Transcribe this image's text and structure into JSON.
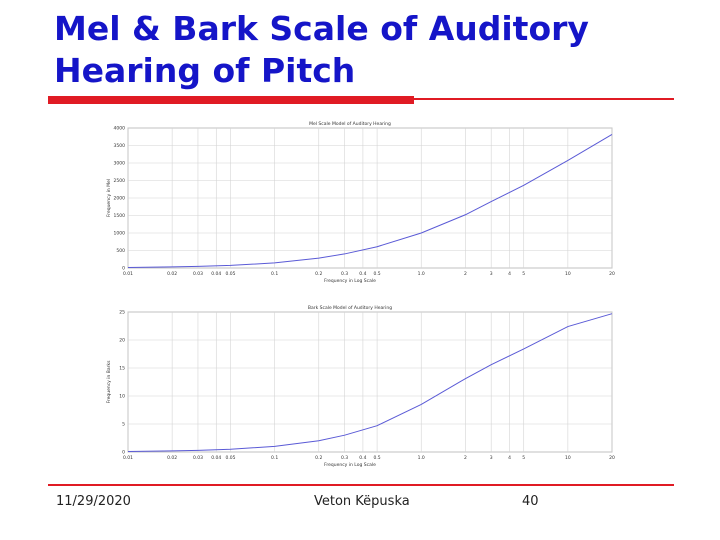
{
  "slide": {
    "title_lines": [
      "Mel & Bark Scale of Auditory",
      "Hearing of Pitch"
    ],
    "accent_color": "#1515c8",
    "rule_color": "#e01b24"
  },
  "footer": {
    "date": "11/29/2020",
    "author": "Veton Këpuska",
    "page": "40"
  },
  "chart_data": [
    {
      "type": "line",
      "title": "Mel Scale Model of Auditory Hearing",
      "xlabel": "Frequency in Log Scale",
      "ylabel": "Frequency in Mel",
      "x_scale": "log",
      "xlim": [
        0.01,
        20
      ],
      "ylim": [
        0,
        4000
      ],
      "x_ticks": [
        0.01,
        0.02,
        0.03,
        0.04,
        0.05,
        0.1,
        0.2,
        0.3,
        0.4,
        0.5,
        1,
        2,
        3,
        4,
        5,
        10,
        20
      ],
      "x_tick_labels": [
        "0.01",
        "0.02",
        "0.03",
        "0.04",
        "0.05",
        "0.1",
        "0.2",
        "0.3",
        "0.4",
        "0.5",
        "1.0",
        "2",
        "3",
        "4",
        "5",
        "10",
        "20"
      ],
      "y_ticks": [
        0,
        500,
        1000,
        1500,
        2000,
        2500,
        3000,
        3500,
        4000
      ],
      "y_tick_labels": [
        "0",
        "500",
        "1000",
        "1500",
        "2000",
        "2500",
        "3000",
        "3500",
        "4000"
      ],
      "grid": true,
      "series": [
        {
          "color": "#5a5ad6",
          "x": [
            0.01,
            0.02,
            0.03,
            0.05,
            0.1,
            0.2,
            0.3,
            0.5,
            1,
            2,
            3,
            5,
            10,
            20
          ],
          "y": [
            15,
            31,
            46,
            75,
            145,
            283,
            402,
            608,
            1000,
            1521,
            1899,
            2363,
            3073,
            3817
          ]
        }
      ]
    },
    {
      "type": "line",
      "title": "Bark Scale Model of Auditory Hearing",
      "xlabel": "Frequency in Log Scale",
      "ylabel": "Frequency in Barks",
      "x_scale": "log",
      "xlim": [
        0.01,
        20
      ],
      "ylim": [
        0,
        25
      ],
      "x_ticks": [
        0.01,
        0.02,
        0.03,
        0.04,
        0.05,
        0.1,
        0.2,
        0.3,
        0.4,
        0.5,
        1,
        2,
        3,
        4,
        5,
        10,
        20
      ],
      "x_tick_labels": [
        "0.01",
        "0.02",
        "0.03",
        "0.04",
        "0.05",
        "0.1",
        "0.2",
        "0.3",
        "0.4",
        "0.5",
        "1.0",
        "2",
        "3",
        "4",
        "5",
        "10",
        "20"
      ],
      "y_ticks": [
        0,
        5,
        10,
        15,
        20,
        25
      ],
      "y_tick_labels": [
        "0",
        "5",
        "10",
        "15",
        "20",
        "25"
      ],
      "grid": true,
      "series": [
        {
          "color": "#5a5ad6",
          "x": [
            0.01,
            0.02,
            0.03,
            0.05,
            0.1,
            0.2,
            0.3,
            0.5,
            1,
            2,
            3,
            5,
            10,
            20
          ],
          "y": [
            0.1,
            0.2,
            0.3,
            0.5,
            1.0,
            2.0,
            3.0,
            4.7,
            8.5,
            13.1,
            15.6,
            18.4,
            22.4,
            24.7
          ]
        }
      ]
    }
  ]
}
